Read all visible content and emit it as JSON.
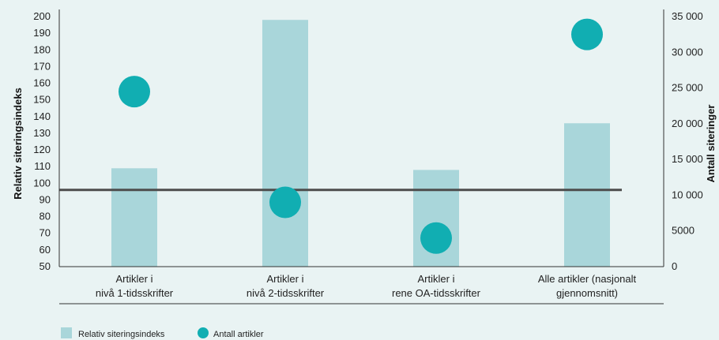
{
  "chart_data": {
    "type": "bar",
    "categories": [
      [
        "Artikler i",
        "nivå 1-tidsskrifter"
      ],
      [
        "Artikler i",
        "nivå 2-tidsskrifter"
      ],
      [
        "Artikler i",
        "rene OA-tidsskrifter"
      ],
      [
        "Alle artikler (nasjonalt",
        "gjennomsnitt)"
      ]
    ],
    "series": [
      {
        "name": "Relativ siteringsindeks",
        "kind": "bar",
        "axis": "left",
        "values": [
          109,
          198,
          108,
          136
        ]
      },
      {
        "name": "Antall artikler",
        "kind": "point",
        "axis": "right",
        "values": [
          24500,
          9000,
          4000,
          32500
        ]
      }
    ],
    "reference_line": {
      "axis": "left",
      "value": 96
    },
    "ylabel": "Relativ siteringsindeks",
    "y2label": "Antall siteringer",
    "ylim": [
      50,
      200
    ],
    "y2lim": [
      0,
      35000
    ],
    "yticks": [
      "50",
      "60",
      "70",
      "80",
      "90",
      "100",
      "110",
      "120",
      "130",
      "140",
      "150",
      "160",
      "170",
      "180",
      "190",
      "200"
    ],
    "y2ticks": [
      {
        "value": 0,
        "label": "0"
      },
      {
        "value": 5000,
        "label": "5000"
      },
      {
        "value": 10000,
        "label": "10 000"
      },
      {
        "value": 15000,
        "label": "15 000"
      },
      {
        "value": 20000,
        "label": "20 000"
      },
      {
        "value": 25000,
        "label": "25 000"
      },
      {
        "value": 30000,
        "label": "30 000"
      },
      {
        "value": 35000,
        "label": "35 000"
      }
    ],
    "grid": false,
    "legend": "bottom-left",
    "colors": {
      "bar": "#a9d6da",
      "point": "#11aeb2",
      "line": "#4d4d4d",
      "axis": "#333333"
    }
  }
}
